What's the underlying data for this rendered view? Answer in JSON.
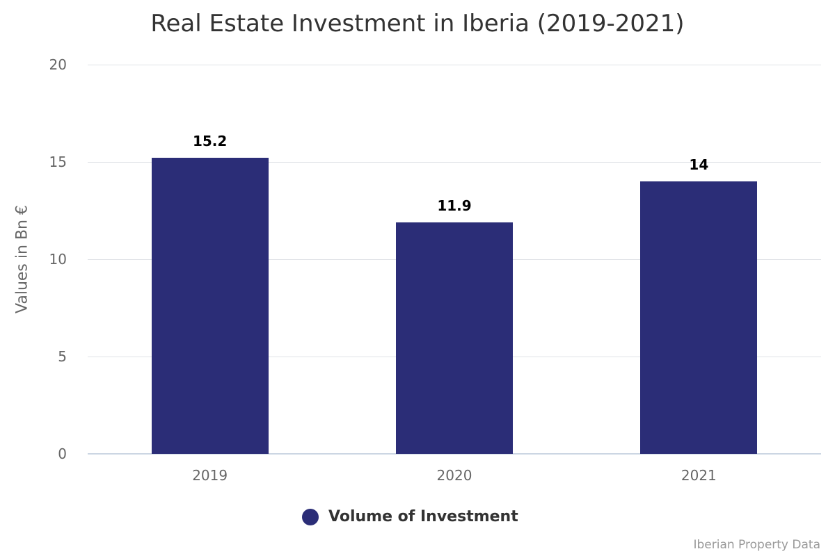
{
  "chart_data": {
    "type": "bar",
    "title": "Real Estate Investment in Iberia (2019-2021)",
    "xlabel": "",
    "ylabel": "Values in Bn €",
    "categories": [
      "2019",
      "2020",
      "2021"
    ],
    "series": [
      {
        "name": "Volume of Investment",
        "values": [
          15.2,
          11.9,
          14
        ],
        "color": "#2b2d77"
      }
    ],
    "value_labels": [
      "15.2",
      "11.9",
      "14"
    ],
    "ylim": [
      0,
      20
    ],
    "yticks": [
      "0",
      "5",
      "10",
      "15",
      "20"
    ],
    "grid": true,
    "legend_position": "bottom"
  },
  "credits": "Iberian Property Data",
  "colors": {
    "bar": "#2b2d77",
    "grid": "#dfe2e6",
    "axis": "#ccd6e3"
  }
}
